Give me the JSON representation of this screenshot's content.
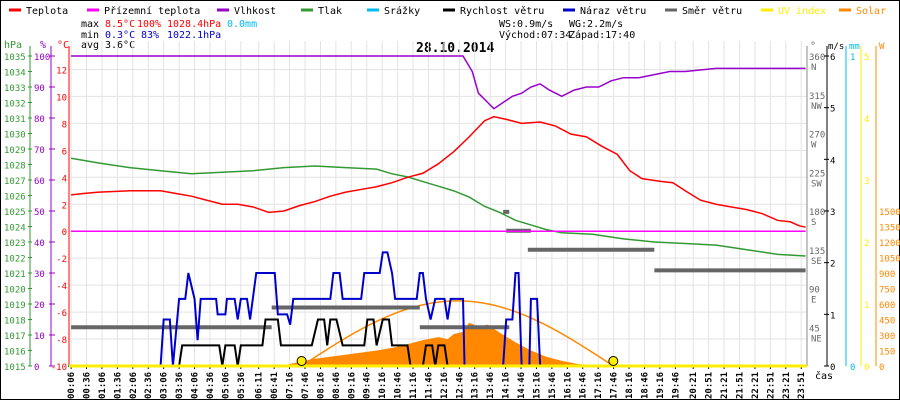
{
  "chart_data": {
    "type": "line",
    "title": "28.10.2014",
    "legend": [
      {
        "name": "Teplota",
        "color": "#ff0000"
      },
      {
        "name": "Přízemní teplota",
        "color": "#ff00ff"
      },
      {
        "name": "Vlhkost",
        "color": "#9900cc"
      },
      {
        "name": "Tlak",
        "color": "#339933"
      },
      {
        "name": "Srážky",
        "color": "#00bbee"
      },
      {
        "name": "Rychlost větru",
        "color": "#000000"
      },
      {
        "name": "Náraz větru",
        "color": "#0000cc"
      },
      {
        "name": "Směr větru",
        "color": "#666666"
      },
      {
        "name": "UV index",
        "color": "#ffee00"
      },
      {
        "name": "Solar",
        "color": "#ff8800"
      }
    ],
    "stats": {
      "max_label": "max",
      "min_label": "min",
      "avg_label": "avg",
      "temp_max": "8.5°C",
      "hum_max": "100%",
      "press_max": "1028.4hPa",
      "rain": "0.0mm",
      "temp_min": "0.3°C",
      "hum_min": "83%",
      "press_min": "1022.1hPa",
      "temp_avg": "3.6°C",
      "ws": "WS:0.9m/s",
      "wg": "WG:2.2m/s",
      "sunrise": "Východ:07:34",
      "sunset": "Západ:17:40"
    },
    "axes": {
      "hPa": {
        "unit": "hPa",
        "range": [
          1015,
          1035
        ],
        "ticks": [
          1015,
          1016,
          1017,
          1018,
          1019,
          1020,
          1021,
          1022,
          1023,
          1024,
          1025,
          1026,
          1027,
          1028,
          1029,
          1030,
          1031,
          1032,
          1033,
          1034,
          1035
        ]
      },
      "pct": {
        "unit": "%",
        "range": [
          0,
          100
        ],
        "ticks": [
          0,
          10,
          20,
          30,
          40,
          50,
          60,
          70,
          80,
          90,
          100
        ]
      },
      "temp": {
        "unit": "°C",
        "range": [
          -10,
          13
        ],
        "ticks": [
          -10,
          -8,
          -6,
          -4,
          -2,
          0,
          2,
          4,
          6,
          8,
          10,
          12
        ]
      },
      "dir": {
        "unit": "°",
        "range": [
          0,
          360
        ],
        "ticks": [
          {
            "v": 45,
            "l": "NE"
          },
          {
            "v": 90,
            "l": "E"
          },
          {
            "v": 135,
            "l": "SE"
          },
          {
            "v": 180,
            "l": "S"
          },
          {
            "v": 225,
            "l": "SW"
          },
          {
            "v": 270,
            "l": "W"
          },
          {
            "v": 315,
            "l": "NW"
          },
          {
            "v": 360,
            "l": "N"
          }
        ]
      },
      "ms": {
        "unit": "m/s",
        "range": [
          0,
          6
        ],
        "ticks": [
          0,
          1,
          2,
          3,
          4,
          5,
          6
        ]
      },
      "mm": {
        "unit": "mm",
        "range": [
          0,
          1
        ],
        "ticks": [
          0,
          1
        ]
      },
      "uv": {
        "unit": "",
        "range": [
          0,
          5
        ],
        "ticks": [
          0,
          1,
          2,
          3,
          4,
          5
        ]
      },
      "w": {
        "unit": "W",
        "range": [
          0,
          3000
        ],
        "ticks": [
          0,
          150,
          300,
          450,
          600,
          750,
          900,
          1050,
          1200,
          1350,
          1500
        ]
      }
    },
    "xlabel": "čas",
    "x_ticks": [
      "00:06",
      "00:36",
      "01:06",
      "01:36",
      "02:06",
      "02:36",
      "03:06",
      "03:36",
      "04:06",
      "04:36",
      "05:06",
      "05:36",
      "06:11",
      "06:41",
      "07:16",
      "07:46",
      "08:16",
      "08:46",
      "09:16",
      "09:46",
      "10:16",
      "10:46",
      "11:16",
      "11:46",
      "12:16",
      "12:46",
      "13:16",
      "13:46",
      "14:16",
      "14:46",
      "15:16",
      "15:46",
      "16:16",
      "16:46",
      "17:16",
      "17:46",
      "18:16",
      "18:46",
      "19:16",
      "19:46",
      "20:21",
      "20:51",
      "21:21",
      "21:51",
      "22:21",
      "22:51",
      "23:21",
      "23:51"
    ],
    "series": {
      "temperature": [
        [
          0.1,
          2.7
        ],
        [
          0.5,
          2.8
        ],
        [
          1,
          2.9
        ],
        [
          2,
          3.0
        ],
        [
          3,
          3.0
        ],
        [
          3.5,
          2.8
        ],
        [
          4,
          2.6
        ],
        [
          4.5,
          2.3
        ],
        [
          5,
          2.0
        ],
        [
          5.5,
          2.0
        ],
        [
          6,
          1.8
        ],
        [
          6.5,
          1.4
        ],
        [
          7,
          1.5
        ],
        [
          7.5,
          1.9
        ],
        [
          8,
          2.2
        ],
        [
          8.5,
          2.6
        ],
        [
          9,
          2.9
        ],
        [
          9.5,
          3.1
        ],
        [
          10,
          3.3
        ],
        [
          10.5,
          3.6
        ],
        [
          11,
          4.0
        ],
        [
          11.5,
          4.3
        ],
        [
          12,
          5.0
        ],
        [
          12.5,
          5.9
        ],
        [
          13,
          7.0
        ],
        [
          13.5,
          8.2
        ],
        [
          13.8,
          8.5
        ],
        [
          14.2,
          8.3
        ],
        [
          14.7,
          8.0
        ],
        [
          15.3,
          8.1
        ],
        [
          15.8,
          7.8
        ],
        [
          16.3,
          7.2
        ],
        [
          16.8,
          7.0
        ],
        [
          17.3,
          6.3
        ],
        [
          17.8,
          5.7
        ],
        [
          18.2,
          4.5
        ],
        [
          18.6,
          3.9
        ],
        [
          19.2,
          3.7
        ],
        [
          19.6,
          3.6
        ],
        [
          20.0,
          3.0
        ],
        [
          20.5,
          2.3
        ],
        [
          21.0,
          2.0
        ],
        [
          21.5,
          1.8
        ],
        [
          22.0,
          1.6
        ],
        [
          22.5,
          1.3
        ],
        [
          23.0,
          0.8
        ],
        [
          23.4,
          0.7
        ],
        [
          23.7,
          0.4
        ],
        [
          23.9,
          0.3
        ]
      ],
      "apparent_temperature": [
        [
          0.1,
          0
        ],
        [
          23.9,
          0
        ]
      ],
      "humidity": [
        [
          0.1,
          100
        ],
        [
          12.8,
          100
        ],
        [
          13.1,
          95
        ],
        [
          13.3,
          88
        ],
        [
          13.6,
          85
        ],
        [
          13.8,
          83
        ],
        [
          14.1,
          85
        ],
        [
          14.4,
          87
        ],
        [
          14.7,
          88
        ],
        [
          15.0,
          90
        ],
        [
          15.3,
          91
        ],
        [
          15.6,
          89
        ],
        [
          16.0,
          87
        ],
        [
          16.4,
          89
        ],
        [
          16.8,
          90
        ],
        [
          17.2,
          90
        ],
        [
          17.6,
          92
        ],
        [
          18.0,
          93
        ],
        [
          18.5,
          93
        ],
        [
          19.0,
          94
        ],
        [
          19.5,
          95
        ],
        [
          20.0,
          95
        ],
        [
          21.0,
          96
        ],
        [
          22.0,
          96
        ],
        [
          23.0,
          96
        ],
        [
          23.9,
          96
        ]
      ],
      "pressure": [
        [
          0.1,
          1028.4
        ],
        [
          1,
          1028.1
        ],
        [
          2,
          1027.8
        ],
        [
          3,
          1027.6
        ],
        [
          4,
          1027.4
        ],
        [
          5,
          1027.5
        ],
        [
          6,
          1027.6
        ],
        [
          7,
          1027.8
        ],
        [
          8,
          1027.9
        ],
        [
          9,
          1027.8
        ],
        [
          10,
          1027.7
        ],
        [
          10.5,
          1027.4
        ],
        [
          11,
          1027.2
        ],
        [
          11.5,
          1026.9
        ],
        [
          12,
          1026.6
        ],
        [
          12.5,
          1026.3
        ],
        [
          13,
          1025.9
        ],
        [
          13.5,
          1025.3
        ],
        [
          14,
          1024.9
        ],
        [
          14.5,
          1024.4
        ],
        [
          15,
          1024.1
        ],
        [
          15.5,
          1023.8
        ],
        [
          16,
          1023.6
        ],
        [
          17,
          1023.5
        ],
        [
          18,
          1023.2
        ],
        [
          19,
          1023.0
        ],
        [
          20,
          1022.9
        ],
        [
          21,
          1022.8
        ],
        [
          22,
          1022.5
        ],
        [
          23,
          1022.2
        ],
        [
          23.9,
          1022.1
        ]
      ],
      "wind_speed": [
        [
          0,
          0
        ],
        [
          3.6,
          0
        ],
        [
          3.7,
          0.4
        ],
        [
          4.9,
          0.4
        ],
        [
          5.0,
          0
        ],
        [
          5.1,
          0.4
        ],
        [
          5.4,
          0.4
        ],
        [
          5.5,
          0
        ],
        [
          5.6,
          0.4
        ],
        [
          6.3,
          0.4
        ],
        [
          6.4,
          0.9
        ],
        [
          6.8,
          0.9
        ],
        [
          6.9,
          0.4
        ],
        [
          7.9,
          0.4
        ],
        [
          8.1,
          0.9
        ],
        [
          8.3,
          0.9
        ],
        [
          8.4,
          0.4
        ],
        [
          8.5,
          0.9
        ],
        [
          8.7,
          0.9
        ],
        [
          8.9,
          0.4
        ],
        [
          9.6,
          0.4
        ],
        [
          9.7,
          0.9
        ],
        [
          9.9,
          0.9
        ],
        [
          10.0,
          0.4
        ],
        [
          10.2,
          0.9
        ],
        [
          10.4,
          0.9
        ],
        [
          10.5,
          0.4
        ],
        [
          11.0,
          0.4
        ],
        [
          11.1,
          0
        ],
        [
          11.5,
          0
        ],
        [
          11.6,
          0.4
        ],
        [
          11.8,
          0.4
        ],
        [
          11.9,
          0
        ],
        [
          12.0,
          0.4
        ],
        [
          12.2,
          0.4
        ],
        [
          12.3,
          0
        ],
        [
          23.9,
          0
        ]
      ],
      "wind_gust": [
        [
          0,
          0
        ],
        [
          3.0,
          0
        ],
        [
          3.1,
          0.9
        ],
        [
          3.3,
          0.9
        ],
        [
          3.4,
          0
        ],
        [
          3.6,
          1.3
        ],
        [
          3.8,
          1.3
        ],
        [
          3.9,
          1.8
        ],
        [
          4.1,
          1.3
        ],
        [
          4.2,
          0.5
        ],
        [
          4.3,
          1.3
        ],
        [
          4.8,
          1.3
        ],
        [
          4.85,
          1.0
        ],
        [
          5.1,
          1.0
        ],
        [
          5.15,
          1.3
        ],
        [
          5.4,
          1.3
        ],
        [
          5.5,
          0.9
        ],
        [
          5.6,
          1.3
        ],
        [
          5.8,
          1.3
        ],
        [
          5.9,
          0.9
        ],
        [
          6.1,
          1.8
        ],
        [
          6.7,
          1.8
        ],
        [
          6.8,
          1.0
        ],
        [
          7.1,
          1.0
        ],
        [
          7.2,
          0.8
        ],
        [
          7.3,
          1.3
        ],
        [
          8.5,
          1.3
        ],
        [
          8.6,
          1.8
        ],
        [
          8.8,
          1.8
        ],
        [
          8.9,
          1.3
        ],
        [
          9.5,
          1.3
        ],
        [
          9.6,
          1.8
        ],
        [
          10.1,
          1.8
        ],
        [
          10.2,
          2.2
        ],
        [
          10.35,
          2.2
        ],
        [
          10.5,
          1.8
        ],
        [
          10.6,
          1.3
        ],
        [
          11.3,
          1.3
        ],
        [
          11.4,
          1.8
        ],
        [
          11.5,
          1.8
        ],
        [
          11.6,
          1.3
        ],
        [
          11.75,
          0.9
        ],
        [
          11.9,
          1.3
        ],
        [
          12.2,
          1.3
        ],
        [
          12.3,
          0.9
        ],
        [
          12.4,
          1.3
        ],
        [
          12.8,
          1.3
        ],
        [
          12.85,
          0
        ],
        [
          14.1,
          0
        ],
        [
          14.2,
          0.9
        ],
        [
          14.4,
          0.9
        ],
        [
          14.5,
          1.8
        ],
        [
          14.6,
          1.8
        ],
        [
          14.7,
          0
        ],
        [
          14.95,
          0
        ],
        [
          15.0,
          1.3
        ],
        [
          15.2,
          1.3
        ],
        [
          15.3,
          0
        ],
        [
          23.9,
          0
        ]
      ],
      "wind_direction": [
        [
          0.1,
          6.6,
          45
        ],
        [
          6.6,
          11.4,
          68
        ],
        [
          11.4,
          14.3,
          45
        ],
        [
          14.1,
          14.3,
          179
        ],
        [
          14.2,
          15.0,
          157
        ],
        [
          14.9,
          19.0,
          135
        ],
        [
          19.0,
          23.9,
          111
        ]
      ],
      "solar": [
        [
          7.0,
          0
        ],
        [
          7.2,
          20
        ],
        [
          7.5,
          40
        ],
        [
          8,
          70
        ],
        [
          8.5,
          90
        ],
        [
          9,
          110
        ],
        [
          9.5,
          130
        ],
        [
          10,
          150
        ],
        [
          10.5,
          175
        ],
        [
          11,
          210
        ],
        [
          11.5,
          250
        ],
        [
          12,
          280
        ],
        [
          12.3,
          260
        ],
        [
          12.5,
          310
        ],
        [
          12.8,
          330
        ],
        [
          13.0,
          420
        ],
        [
          13.3,
          380
        ],
        [
          13.6,
          400
        ],
        [
          14,
          320
        ],
        [
          14.5,
          230
        ],
        [
          15,
          150
        ],
        [
          15.5,
          90
        ],
        [
          16,
          50
        ],
        [
          16.5,
          20
        ],
        [
          17,
          5
        ],
        [
          17.3,
          0
        ]
      ],
      "solar_theoretical": {
        "rise": 7.57,
        "set": 17.67,
        "peak": 630
      },
      "uv": [
        [
          0,
          0
        ],
        [
          23.9,
          0
        ]
      ],
      "rain": [
        [
          0,
          0
        ],
        [
          23.9,
          0
        ]
      ],
      "sun_markers": [
        7.57,
        17.67
      ]
    }
  }
}
